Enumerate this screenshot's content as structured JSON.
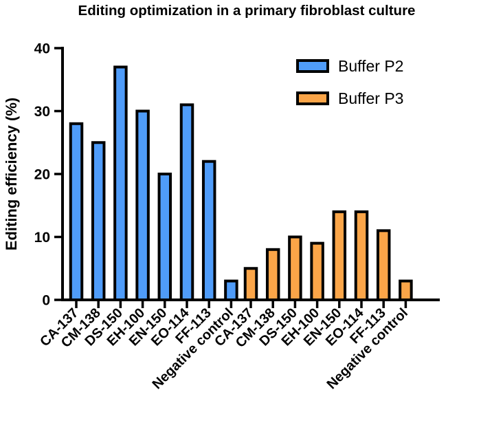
{
  "chart_data": {
    "type": "bar",
    "title": "Editing optimization in a primary fibroblast culture",
    "ylabel": "Editing efficiency (%)",
    "xlabel": "",
    "ylim": [
      0,
      40
    ],
    "yticks": [
      "0",
      "10",
      "20",
      "30",
      "40"
    ],
    "legend_position": "top-right",
    "grid": false,
    "categories": [
      "CA-137",
      "CM-138",
      "DS-150",
      "EH-100",
      "EN-150",
      "EO-114",
      "FF-113",
      "Negative control"
    ],
    "series": [
      {
        "name": "Buffer P2",
        "color": "#4f9cf9",
        "values": [
          28,
          25,
          37,
          30,
          20,
          31,
          22,
          3
        ]
      },
      {
        "name": "Buffer P3",
        "color": "#fba548",
        "values": [
          5,
          8,
          10,
          9,
          14,
          14,
          11,
          3
        ]
      }
    ]
  }
}
